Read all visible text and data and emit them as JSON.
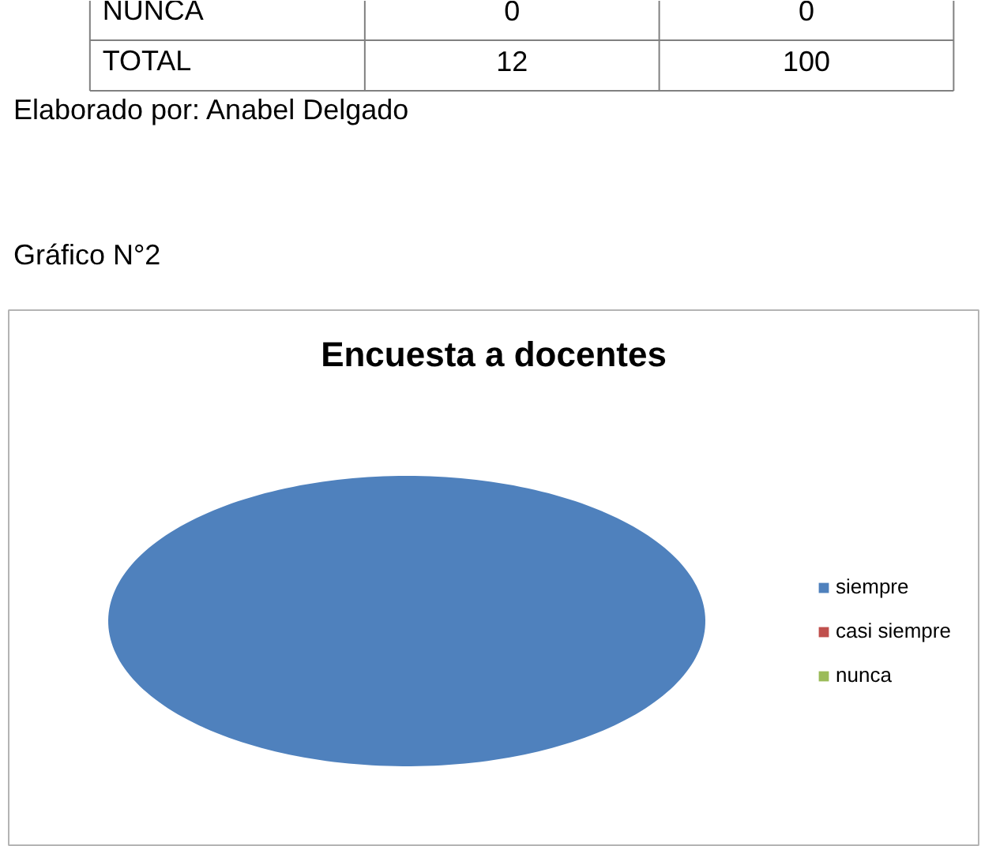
{
  "chart_data": [
    {
      "type": "other",
      "categories": [
        "NUNCA",
        "TOTAL"
      ],
      "series": [
        {
          "values": [
            0,
            12
          ]
        },
        {
          "values": [
            0,
            100
          ]
        }
      ],
      "data_labels": true,
      "annotations": [
        "Elaborado por: Anabel Delgado"
      ]
    },
    {
      "type": "pie",
      "title": "Encuesta a docentes",
      "categories": [
        "siempre",
        "casi siempre",
        "nunca"
      ],
      "values": [
        100,
        0,
        0
      ],
      "colors": [
        "#4f81bd",
        "#c0504d",
        "#9bbb59"
      ],
      "legend": "right",
      "annotations": [
        "Gráfico N°2"
      ]
    }
  ]
}
